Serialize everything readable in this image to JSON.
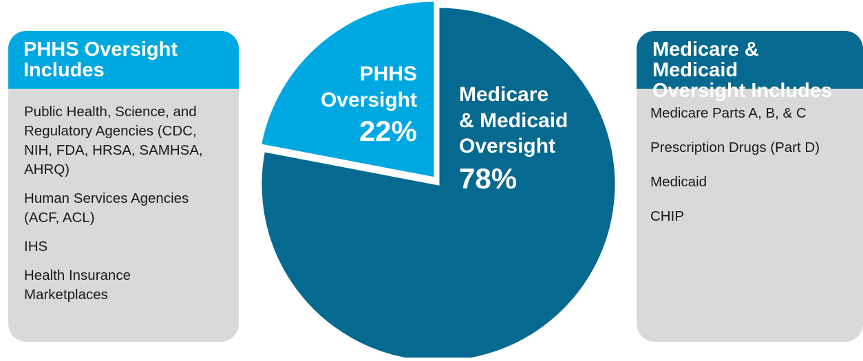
{
  "left_card": {
    "title_line1": "PHHS Oversight",
    "title_line2": "Includes",
    "items": [
      "Public Health, Science, and Regulatory Agencies (CDC, NIH, FDA, HRSA, SAMHSA, AHRQ)",
      "Human Services Agencies (ACF, ACL)",
      "IHS",
      "Health Insurance Marketplaces"
    ]
  },
  "right_card": {
    "title_line1": "Medicare & Medicaid",
    "title_line2": "Oversight Includes",
    "items": [
      "Medicare Parts A, B, & C",
      "Prescription Drugs (Part D)",
      "Medicaid",
      "CHIP"
    ]
  },
  "chart_data": {
    "type": "pie",
    "slices": [
      {
        "label_lines": [
          "PHHS",
          "Oversight"
        ],
        "value": 22,
        "value_label": "22%",
        "color": "#00a8e1"
      },
      {
        "label_lines": [
          "Medicare",
          "& Medicaid",
          "Oversight"
        ],
        "value": 78,
        "value_label": "78%",
        "color": "#06698f"
      }
    ]
  },
  "colors": {
    "phhs": "#00a8e1",
    "medicare_medicaid": "#06698f",
    "card_background": "#d9d9da"
  }
}
